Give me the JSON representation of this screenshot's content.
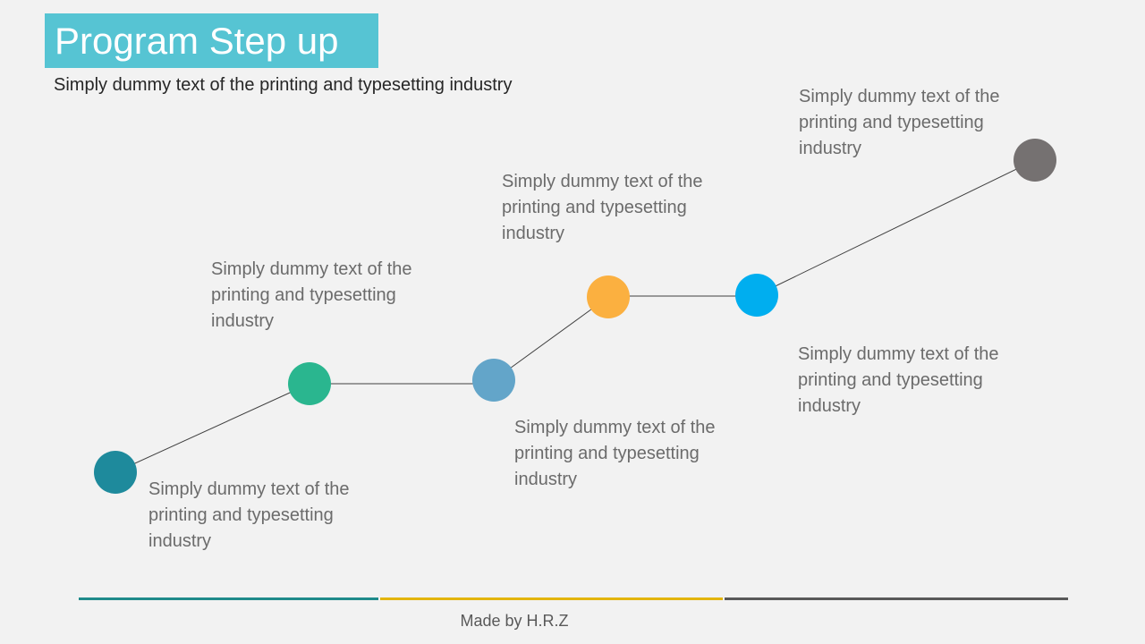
{
  "title": "Program Step up",
  "subtitle": "Simply dummy text of the printing and typesetting industry",
  "steps": [
    {
      "caption": "Simply dummy text of the printing and typesetting industry",
      "color": "#1e8a9c"
    },
    {
      "caption": "Simply dummy text of the printing and typesetting industry",
      "color": "#2ab68f"
    },
    {
      "caption": "Simply dummy text of the printing and typesetting industry",
      "color": "#63a5c9"
    },
    {
      "caption": "Simply dummy text of the printing and typesetting industry",
      "color": "#fbb040"
    },
    {
      "caption": "Simply dummy text of the printing and typesetting industry",
      "color": "#00aeef"
    },
    {
      "caption": "Simply dummy text of the printing and typesetting industry",
      "color": "#757171"
    }
  ],
  "footer": {
    "text": "Made by H.R.Z",
    "bar_colors": [
      "#1f8a8a",
      "#e3b50d",
      "#595959"
    ]
  }
}
